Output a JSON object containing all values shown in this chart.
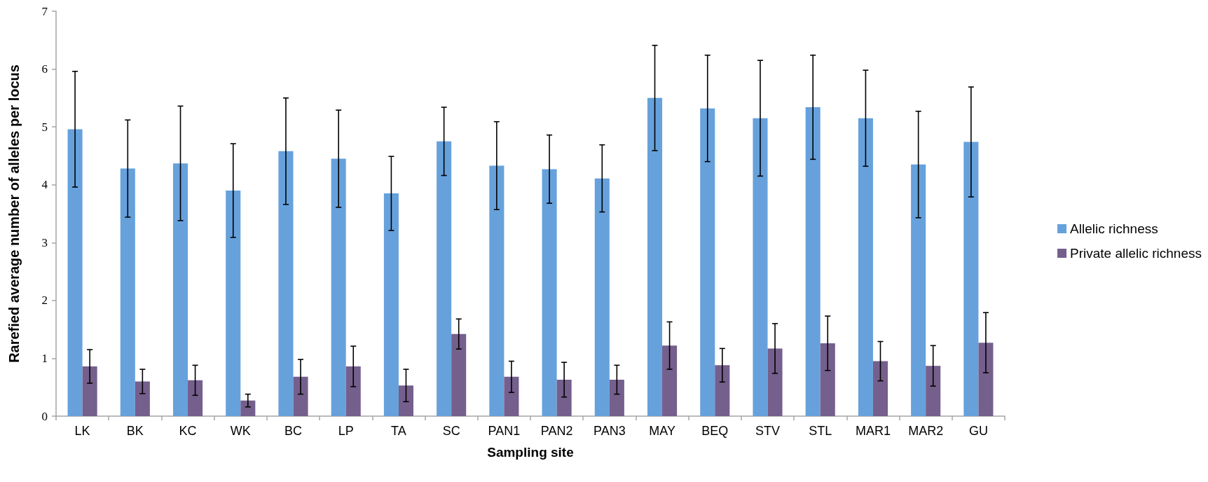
{
  "chart_data": {
    "type": "bar",
    "xlabel": "Sampling site",
    "ylabel": "Rarefied average number of alleles per locus",
    "categories": [
      "LK",
      "BK",
      "KC",
      "WK",
      "BC",
      "LP",
      "TA",
      "SC",
      "PAN1",
      "PAN2",
      "PAN3",
      "MAY",
      "BEQ",
      "STV",
      "STL",
      "MAR1",
      "MAR2",
      "GU"
    ],
    "series": [
      {
        "name": "Allelic richness",
        "color": "#66a1dc",
        "values": [
          4.96,
          4.28,
          4.37,
          3.9,
          4.58,
          4.45,
          3.85,
          4.75,
          4.33,
          4.27,
          4.11,
          5.5,
          5.32,
          5.15,
          5.34,
          5.15,
          4.35,
          4.74
        ],
        "errors": [
          1.0,
          0.84,
          0.99,
          0.81,
          0.92,
          0.84,
          0.64,
          0.59,
          0.76,
          0.59,
          0.58,
          0.91,
          0.92,
          1.0,
          0.9,
          0.83,
          0.92,
          0.95
        ]
      },
      {
        "name": "Private allelic richness",
        "color": "#755f8d",
        "values": [
          0.86,
          0.6,
          0.62,
          0.27,
          0.68,
          0.86,
          0.53,
          1.42,
          0.68,
          0.63,
          0.63,
          1.22,
          0.88,
          1.17,
          1.26,
          0.95,
          0.87,
          1.27
        ],
        "errors": [
          0.29,
          0.21,
          0.26,
          0.11,
          0.3,
          0.35,
          0.28,
          0.26,
          0.27,
          0.3,
          0.25,
          0.41,
          0.29,
          0.43,
          0.47,
          0.34,
          0.35,
          0.52
        ]
      }
    ],
    "ylim": [
      0,
      7
    ],
    "yticks": [
      0,
      1,
      2,
      3,
      4,
      5,
      6,
      7
    ],
    "grid": false,
    "legend": "right"
  }
}
